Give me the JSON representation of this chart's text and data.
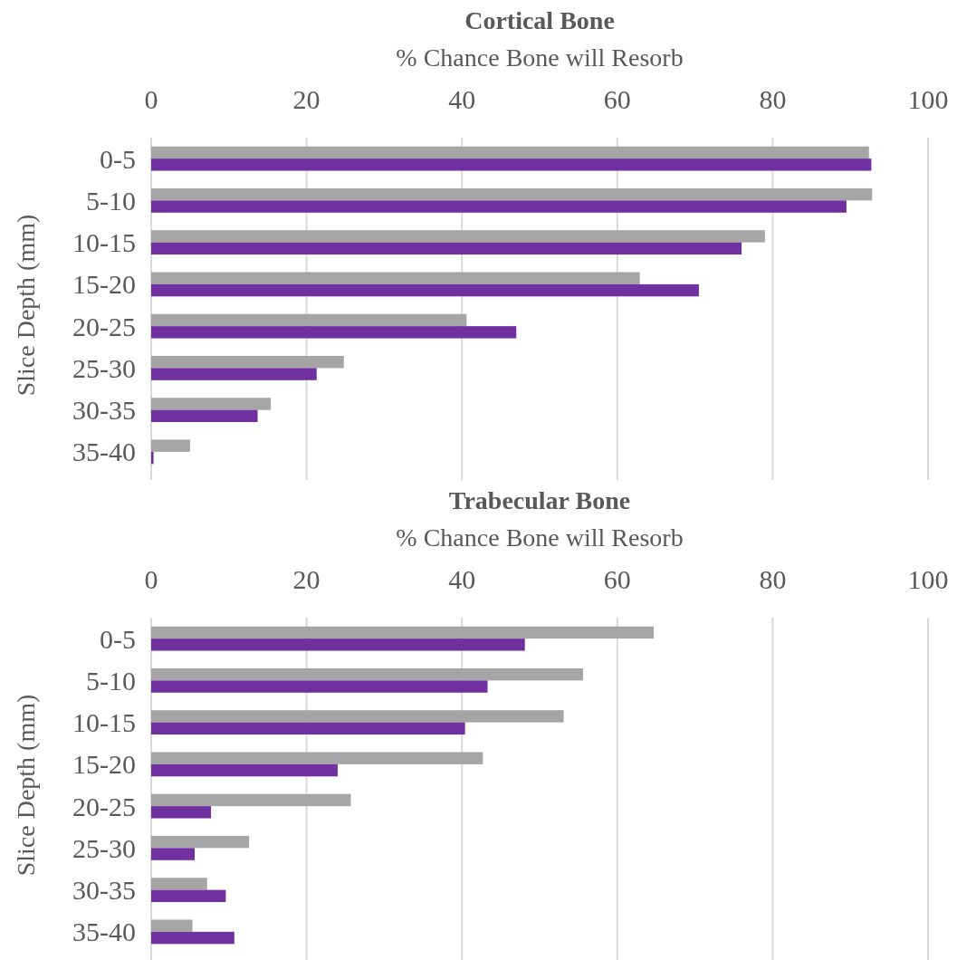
{
  "chart_data": [
    {
      "type": "bar",
      "orientation": "horizontal",
      "title": "Cortical Bone",
      "xlabel": "% Chance Bone will Resorb",
      "ylabel": "Slice Depth (mm)",
      "categories": [
        "0-5",
        "5-10",
        "10-15",
        "15-20",
        "20-25",
        "25-30",
        "30-35",
        "35-40"
      ],
      "xlim": [
        0,
        100
      ],
      "xticks": [
        0,
        20,
        40,
        60,
        80,
        100
      ],
      "grid": "x",
      "series": [
        {
          "color": "#a5a5a5",
          "values": [
            92.4,
            92.8,
            79.0,
            62.9,
            40.6,
            24.8,
            15.4,
            5.0
          ]
        },
        {
          "color": "#7030a0",
          "values": [
            92.7,
            89.5,
            76.0,
            70.5,
            47.0,
            21.3,
            13.7,
            0.3
          ]
        }
      ]
    },
    {
      "type": "bar",
      "orientation": "horizontal",
      "title": "Trabecular Bone",
      "xlabel": "% Chance Bone will Resorb",
      "ylabel": "Slice Depth (mm)",
      "categories": [
        "0-5",
        "5-10",
        "10-15",
        "15-20",
        "20-25",
        "25-30",
        "30-35",
        "35-40"
      ],
      "xlim": [
        0,
        100
      ],
      "xticks": [
        0,
        20,
        40,
        60,
        80,
        100
      ],
      "grid": "x",
      "series": [
        {
          "color": "#a5a5a5",
          "values": [
            64.7,
            55.6,
            53.1,
            42.7,
            25.7,
            12.6,
            7.2,
            5.3
          ]
        },
        {
          "color": "#7030a0",
          "values": [
            48.1,
            43.3,
            40.4,
            24.0,
            7.7,
            5.6,
            9.6,
            10.7
          ]
        }
      ]
    }
  ]
}
